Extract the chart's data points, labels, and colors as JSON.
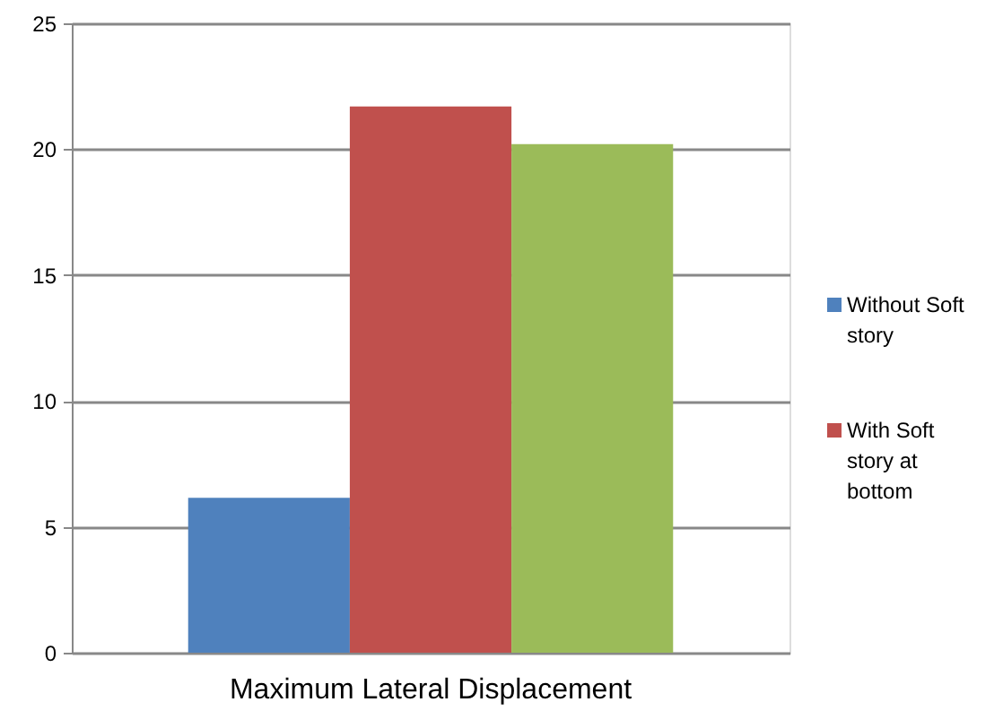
{
  "chart_data": {
    "type": "bar",
    "categories": [
      "Maximum Lateral Displacement"
    ],
    "series": [
      {
        "name": "Without Soft story",
        "color": "#4f81bd",
        "values": [
          6.15
        ]
      },
      {
        "name": "With Soft story at bottom",
        "color": "#c0504d",
        "values": [
          21.7
        ]
      },
      {
        "color": "#9bbb59",
        "values": [
          20.2
        ]
      }
    ],
    "ylim": [
      0,
      25
    ],
    "yticks": [
      0,
      5,
      10,
      15,
      20,
      25
    ],
    "grid": "y",
    "legend": "right"
  }
}
